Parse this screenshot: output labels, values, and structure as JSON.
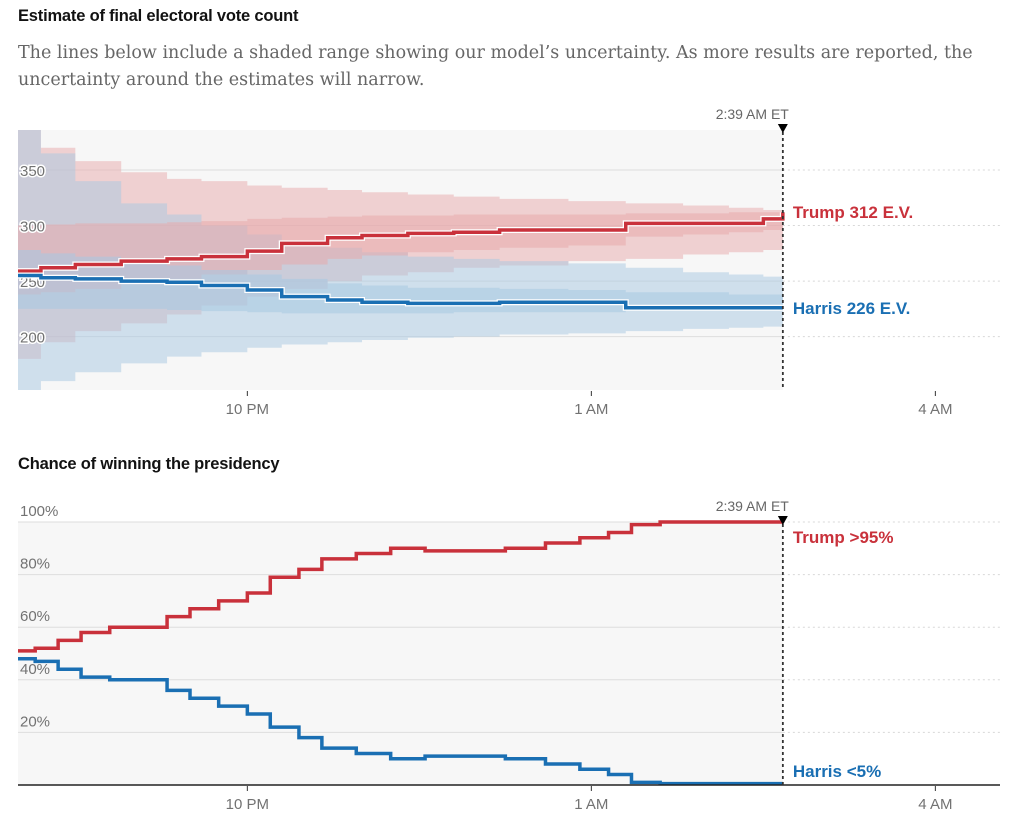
{
  "section1": {
    "title": "Estimate of final electoral vote count",
    "description": "The lines below include a shaded range showing our model’s uncertainty. As more results are reported, the uncertainty around the estimates will narrow."
  },
  "section2": {
    "title": "Chance of winning the presidency"
  },
  "colors": {
    "trump": "#c9313b",
    "harris": "#1a6fb3",
    "trump_band": "#e8a9ac",
    "harris_band": "#a8c8e2"
  },
  "now_label": "2:39 AM ET",
  "chart_data": [
    {
      "type": "line",
      "title": "Estimate of final electoral vote count",
      "x_unit": "hours after 8 PM ET",
      "xlim": [
        0,
        8.55
      ],
      "x_ticks": [
        {
          "value": 2,
          "label": "10 PM"
        },
        {
          "value": 5,
          "label": "1 AM"
        },
        {
          "value": 8,
          "label": "4 AM"
        }
      ],
      "ylim": [
        152,
        386
      ],
      "y_ticks": [
        {
          "value": 350,
          "label": "350"
        },
        {
          "value": 300,
          "label": "300"
        },
        {
          "value": 250,
          "label": "250"
        },
        {
          "value": 200,
          "label": "200"
        }
      ],
      "grid": true,
      "now_x": 6.67,
      "series": [
        {
          "name": "Trump",
          "end_label": "Trump 312 E.V.",
          "x": [
            0,
            0.2,
            0.5,
            0.9,
            1.3,
            1.6,
            2.0,
            2.3,
            2.7,
            3.0,
            3.4,
            3.8,
            4.2,
            4.8,
            5.3,
            5.8,
            6.2,
            6.5,
            6.67
          ],
          "values": [
            259,
            262,
            265,
            268,
            270,
            272,
            277,
            284,
            289,
            291,
            293,
            294,
            296,
            296,
            302,
            302,
            302,
            306,
            312
          ],
          "band50_low": [
            238,
            240,
            243,
            248,
            252,
            256,
            260,
            265,
            270,
            273,
            276,
            278,
            280,
            282,
            290,
            292,
            294,
            296,
            297
          ],
          "band50_high": [
            300,
            301,
            302,
            302,
            303,
            304,
            306,
            307,
            308,
            309,
            309,
            310,
            310,
            310,
            311,
            311,
            312,
            312,
            313
          ],
          "band90_low": [
            180,
            195,
            205,
            212,
            220,
            228,
            236,
            243,
            250,
            255,
            258,
            262,
            264,
            268,
            270,
            274,
            276,
            278,
            280
          ],
          "band90_high": [
            386,
            370,
            358,
            348,
            342,
            340,
            336,
            334,
            332,
            330,
            328,
            326,
            324,
            322,
            320,
            318,
            316,
            314,
            314
          ]
        },
        {
          "name": "Harris",
          "end_label": "Harris 226 E.V.",
          "x": [
            0,
            0.2,
            0.5,
            0.9,
            1.3,
            1.6,
            2.0,
            2.3,
            2.7,
            3.0,
            3.4,
            3.8,
            4.2,
            4.8,
            5.3,
            5.8,
            6.2,
            6.5,
            6.67
          ],
          "values": [
            255,
            253,
            252,
            250,
            249,
            246,
            242,
            236,
            233,
            231,
            230,
            230,
            231,
            231,
            226,
            226,
            226,
            226,
            226
          ],
          "band50_low": [
            225,
            225,
            225,
            225,
            224,
            223,
            222,
            221,
            221,
            221,
            221,
            222,
            222,
            222,
            224,
            225,
            226,
            226,
            226
          ],
          "band50_high": [
            278,
            275,
            272,
            268,
            264,
            260,
            256,
            252,
            248,
            246,
            244,
            244,
            243,
            242,
            240,
            240,
            238,
            238,
            236
          ],
          "band90_low": [
            152,
            160,
            168,
            176,
            182,
            186,
            190,
            193,
            195,
            197,
            199,
            200,
            202,
            203,
            205,
            207,
            208,
            209,
            210
          ],
          "band90_high": [
            386,
            365,
            340,
            320,
            310,
            300,
            292,
            285,
            280,
            276,
            272,
            270,
            268,
            266,
            262,
            258,
            256,
            254,
            254
          ]
        }
      ]
    },
    {
      "type": "line",
      "title": "Chance of winning the presidency",
      "x_unit": "hours after 8 PM ET",
      "xlim": [
        0,
        8.55
      ],
      "x_ticks": [
        {
          "value": 2,
          "label": "10 PM"
        },
        {
          "value": 5,
          "label": "1 AM"
        },
        {
          "value": 8,
          "label": "4 AM"
        }
      ],
      "ylim": [
        0,
        100
      ],
      "y_ticks": [
        {
          "value": 100,
          "label": "100%"
        },
        {
          "value": 80,
          "label": "80%"
        },
        {
          "value": 60,
          "label": "60%"
        },
        {
          "value": 40,
          "label": "40%"
        },
        {
          "value": 20,
          "label": "20%"
        }
      ],
      "grid": true,
      "now_x": 6.67,
      "series": [
        {
          "name": "Trump",
          "end_label": "Trump >95%",
          "x": [
            0,
            0.15,
            0.35,
            0.55,
            0.8,
            1.05,
            1.3,
            1.5,
            1.75,
            2.0,
            2.2,
            2.45,
            2.65,
            2.95,
            3.25,
            3.55,
            3.9,
            4.25,
            4.6,
            4.9,
            5.15,
            5.35,
            5.6,
            6.0,
            6.4,
            6.67
          ],
          "values": [
            51,
            52,
            55,
            58,
            60,
            60,
            64,
            67,
            70,
            73,
            79,
            82,
            86,
            88,
            90,
            89,
            89,
            90,
            92,
            94,
            96,
            99,
            100,
            100,
            100,
            100
          ]
        },
        {
          "name": "Harris",
          "end_label": "Harris <5%",
          "x": [
            0,
            0.15,
            0.35,
            0.55,
            0.8,
            1.05,
            1.3,
            1.5,
            1.75,
            2.0,
            2.2,
            2.45,
            2.65,
            2.95,
            3.25,
            3.55,
            3.9,
            4.25,
            4.6,
            4.9,
            5.15,
            5.35,
            5.6,
            6.0,
            6.4,
            6.67
          ],
          "values": [
            48,
            47,
            44,
            41,
            40,
            40,
            36,
            33,
            30,
            27,
            22,
            18,
            14,
            12,
            10,
            11,
            11,
            10,
            8,
            6,
            4,
            1,
            0.5,
            0.5,
            0.5,
            0.5
          ]
        }
      ]
    }
  ]
}
